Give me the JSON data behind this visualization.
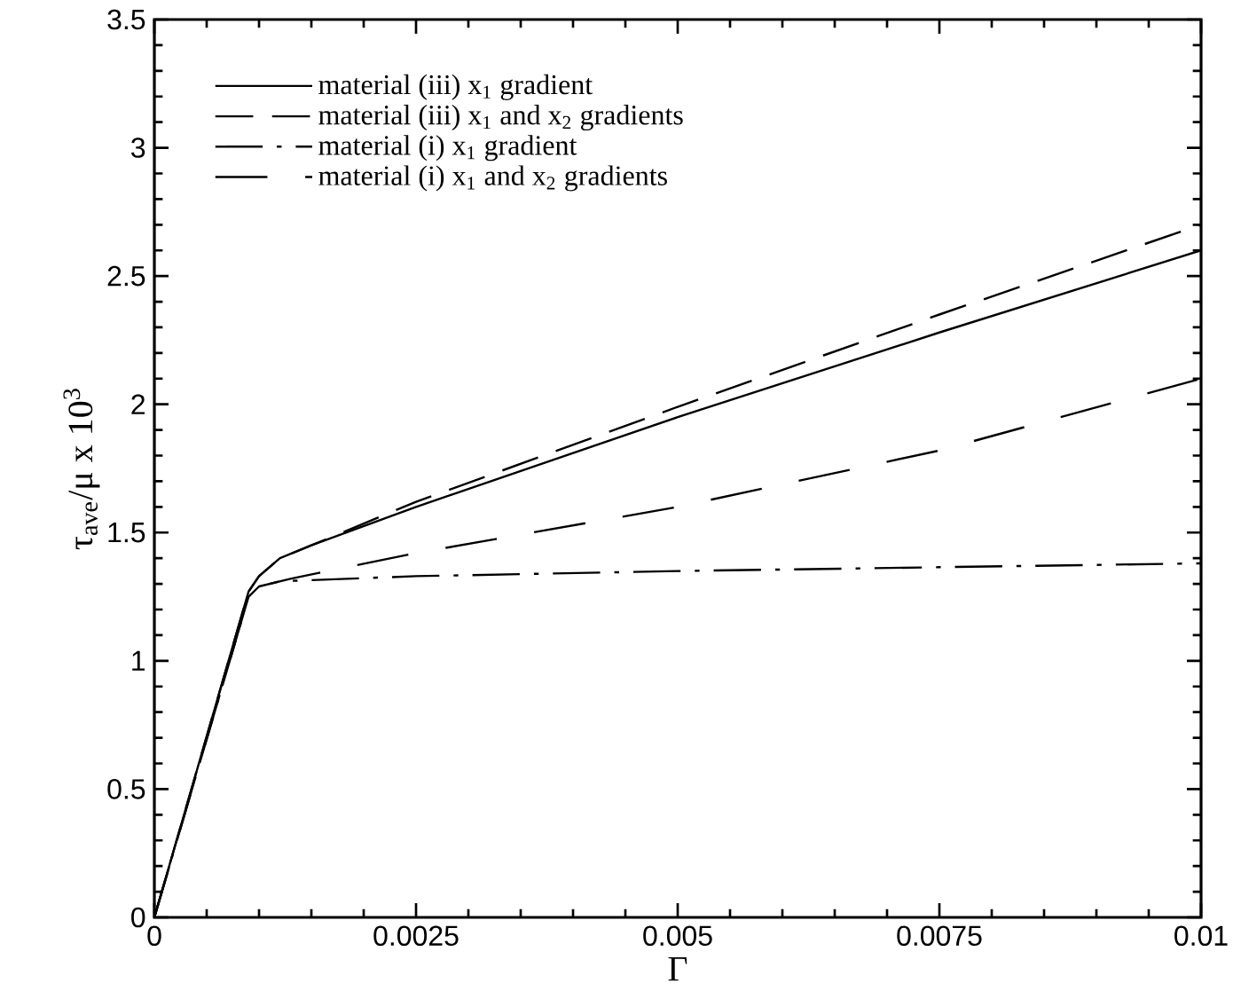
{
  "chart_data": {
    "type": "line",
    "xlabel": "Γ",
    "ylabel": "τ$_{ave}$/μ x 10$^{3}$",
    "xlim": [
      0,
      0.01
    ],
    "ylim": [
      0,
      3.5
    ],
    "xticks": [
      0,
      0.0025,
      0.005,
      0.0075,
      0.01
    ],
    "yticks": [
      0,
      0.5,
      1,
      1.5,
      2,
      2.5,
      3,
      3.5
    ],
    "legend": "top left",
    "grid": false,
    "marker": "none",
    "series": [
      {
        "name": "material (iii)  x$_{1}$ gradient",
        "color": "#000000",
        "line_style": "solid",
        "x": [
          0,
          0.0009,
          0.001,
          0.0012,
          0.0015,
          0.0025,
          0.005,
          0.0075,
          0.01
        ],
        "values": [
          0,
          1.27,
          1.33,
          1.4,
          1.45,
          1.6,
          1.95,
          2.28,
          2.6
        ]
      },
      {
        "name": "material (iii)  x$_{1}$ and x$_{2}$ gradients",
        "color": "#000000",
        "line_style": "dashed",
        "x": [
          0,
          0.0009,
          0.001,
          0.0012,
          0.0015,
          0.0025,
          0.005,
          0.0075,
          0.01
        ],
        "values": [
          0,
          1.27,
          1.33,
          1.4,
          1.45,
          1.62,
          1.99,
          2.35,
          2.7
        ]
      },
      {
        "name": "material (i) x$_{1}$ gradient",
        "color": "#000000",
        "line_style": "dashdot",
        "x": [
          0,
          0.0009,
          0.001,
          0.0012,
          0.0025,
          0.005,
          0.0075,
          0.01
        ],
        "values": [
          0,
          1.25,
          1.29,
          1.31,
          1.33,
          1.35,
          1.365,
          1.38
        ]
      },
      {
        "name": "material (i) x$_{1}$ and x$_{2}$ gradients",
        "color": "#000000",
        "line_style": "long dashed",
        "x": [
          0,
          0.0009,
          0.001,
          0.0013,
          0.0025,
          0.005,
          0.0075,
          0.01
        ],
        "values": [
          0,
          1.25,
          1.29,
          1.32,
          1.42,
          1.6,
          1.82,
          2.1
        ]
      }
    ]
  }
}
